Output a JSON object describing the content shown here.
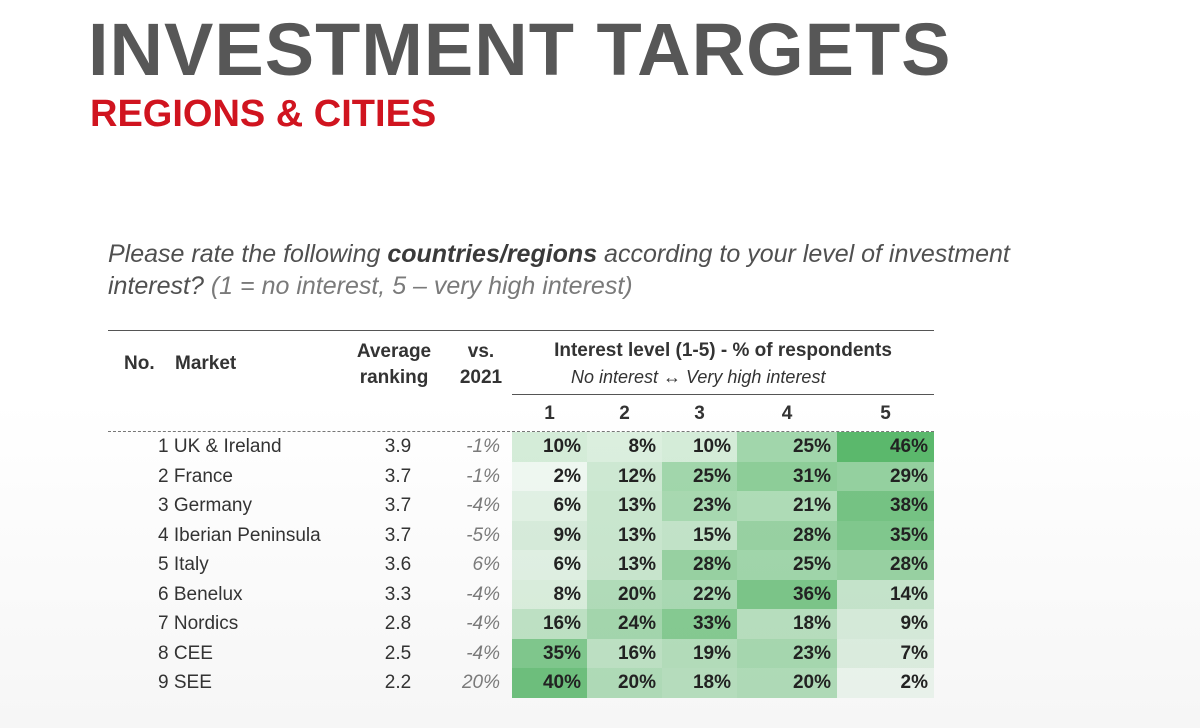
{
  "title": "INVESTMENT TARGETS",
  "subtitle": "REGIONS & CITIES",
  "question": {
    "pre": "Please rate the following ",
    "bold": "countries/regions",
    "post": " according to your level of investment interest?",
    "paren": "(1 = no interest, 5 – very high interest)"
  },
  "table": {
    "headers": {
      "no": "No.",
      "market": "Market",
      "avg_line1": "Average",
      "avg_line2": "ranking",
      "vs_line1": "vs.",
      "vs_line2": "2021",
      "interest_title": "Interest level (1-5) - % of respondents",
      "interest_sub": "No interest ↔ Very high interest",
      "levels": [
        "1",
        "2",
        "3",
        "4",
        "5"
      ]
    },
    "rows": [
      {
        "market": "1 UK & Ireland",
        "avg": "3.9",
        "vs": "-1%",
        "pct": [
          10,
          8,
          10,
          25,
          46
        ]
      },
      {
        "market": "2 France",
        "avg": "3.7",
        "vs": "-1%",
        "pct": [
          2,
          12,
          25,
          31,
          29
        ]
      },
      {
        "market": "3 Germany",
        "avg": "3.7",
        "vs": "-4%",
        "pct": [
          6,
          13,
          23,
          21,
          38
        ]
      },
      {
        "market": "4 Iberian Peninsula",
        "avg": "3.7",
        "vs": "-5%",
        "pct": [
          9,
          13,
          15,
          28,
          35
        ]
      },
      {
        "market": "5 Italy",
        "avg": "3.6",
        "vs": "6%",
        "pct": [
          6,
          13,
          28,
          25,
          28
        ]
      },
      {
        "market": "6 Benelux",
        "avg": "3.3",
        "vs": "-4%",
        "pct": [
          8,
          20,
          22,
          36,
          14
        ]
      },
      {
        "market": "7 Nordics",
        "avg": "2.8",
        "vs": "-4%",
        "pct": [
          16,
          24,
          33,
          18,
          9
        ]
      },
      {
        "market": "8 CEE",
        "avg": "2.5",
        "vs": "-4%",
        "pct": [
          35,
          16,
          19,
          23,
          7
        ]
      },
      {
        "market": "9 SEE",
        "avg": "2.2",
        "vs": "20%",
        "pct": [
          40,
          20,
          18,
          20,
          2
        ]
      }
    ]
  }
}
